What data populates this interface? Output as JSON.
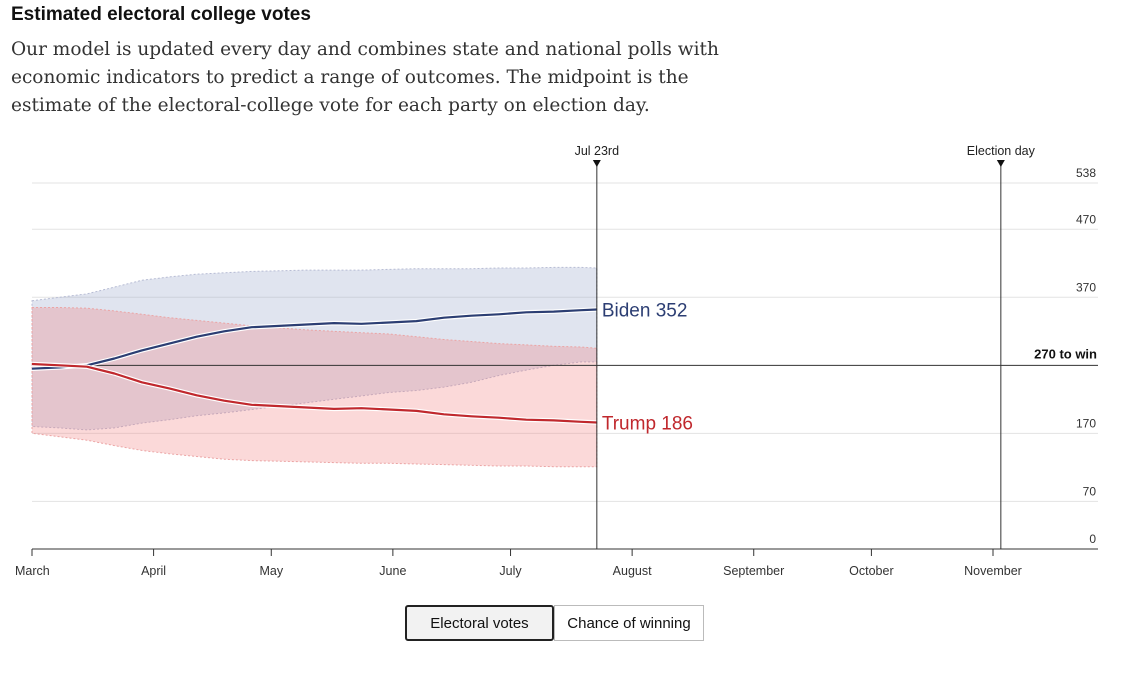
{
  "header": {
    "title": "Estimated electoral college votes",
    "description": "Our model is updated every day and combines state and national polls with economic indicators to predict a range of outcomes. The midpoint is the estimate of the electoral-college vote for each party on election day."
  },
  "toggle": {
    "electoral_votes_label": "Electoral votes",
    "chance_label": "Chance of winning",
    "selected": "Electoral votes"
  },
  "chart_data": {
    "type": "line",
    "x_domain_days": [
      0,
      245
    ],
    "x_ticks": [
      {
        "label": "March",
        "day": 0
      },
      {
        "label": "April",
        "day": 31
      },
      {
        "label": "May",
        "day": 61
      },
      {
        "label": "June",
        "day": 92
      },
      {
        "label": "July",
        "day": 122
      },
      {
        "label": "August",
        "day": 153
      },
      {
        "label": "September",
        "day": 184
      },
      {
        "label": "October",
        "day": 214
      },
      {
        "label": "November",
        "day": 245
      }
    ],
    "ylim": [
      0,
      538
    ],
    "y_ticks": [
      538,
      470,
      370,
      170,
      70,
      0
    ],
    "threshold": {
      "value": 270,
      "label": "270 to win"
    },
    "markers": [
      {
        "label": "Jul 23rd",
        "day": 144
      },
      {
        "label": "Election day",
        "day": 247
      }
    ],
    "series": [
      {
        "name": "Biden",
        "color": "#2c3e73",
        "end_label": "Biden 352",
        "days": [
          0,
          7,
          14,
          21,
          28,
          35,
          42,
          49,
          56,
          63,
          70,
          77,
          84,
          91,
          98,
          105,
          112,
          119,
          126,
          133,
          140,
          144
        ],
        "values": [
          265,
          267,
          270,
          280,
          292,
          302,
          312,
          320,
          326,
          328,
          330,
          332,
          331,
          333,
          335,
          340,
          343,
          345,
          348,
          349,
          351,
          352
        ],
        "lower": [
          180,
          178,
          175,
          178,
          185,
          190,
          196,
          200,
          205,
          210,
          215,
          220,
          225,
          230,
          233,
          238,
          245,
          255,
          263,
          270,
          275,
          275
        ],
        "upper": [
          365,
          370,
          375,
          385,
          395,
          400,
          404,
          406,
          408,
          409,
          410,
          410,
          410,
          411,
          412,
          412,
          412,
          413,
          413,
          414,
          414,
          413
        ]
      },
      {
        "name": "Trump",
        "color": "#c0282d",
        "end_label": "Trump 186",
        "days": [
          0,
          7,
          14,
          21,
          28,
          35,
          42,
          49,
          56,
          63,
          70,
          77,
          84,
          91,
          98,
          105,
          112,
          119,
          126,
          133,
          140,
          144
        ],
        "values": [
          272,
          270,
          268,
          258,
          245,
          236,
          226,
          218,
          212,
          210,
          208,
          206,
          207,
          205,
          203,
          198,
          195,
          193,
          190,
          189,
          187,
          186
        ],
        "lower": [
          170,
          165,
          160,
          152,
          145,
          140,
          136,
          132,
          130,
          129,
          128,
          127,
          126,
          126,
          125,
          124,
          123,
          122,
          122,
          121,
          121,
          121
        ],
        "upper": [
          355,
          355,
          354,
          350,
          345,
          340,
          336,
          332,
          328,
          325,
          322,
          320,
          318,
          316,
          312,
          308,
          305,
          302,
          300,
          298,
          297,
          295
        ]
      }
    ]
  }
}
